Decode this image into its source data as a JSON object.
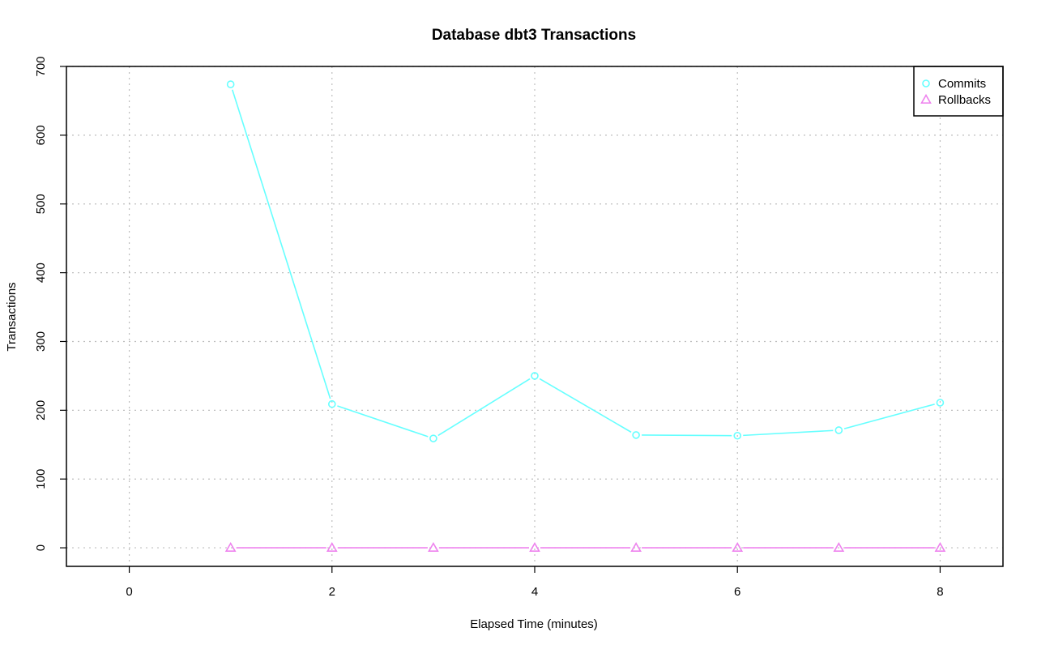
{
  "chart_data": {
    "type": "line",
    "title": "Database dbt3 Transactions",
    "xlabel": "Elapsed Time (minutes)",
    "ylabel": "Transactions",
    "xlim": [
      -0.62,
      8.62
    ],
    "ylim": [
      -27,
      700
    ],
    "x_ticks": [
      0,
      2,
      4,
      6,
      8
    ],
    "y_ticks": [
      0,
      100,
      200,
      300,
      400,
      500,
      600,
      700
    ],
    "grid": true,
    "legend_position": "top-right",
    "series": [
      {
        "name": "Commits",
        "color": "#66ffff",
        "marker": "circle",
        "x": [
          1,
          2,
          3,
          4,
          5,
          6,
          7,
          8
        ],
        "values": [
          674,
          209,
          159,
          250,
          164,
          163,
          171,
          211
        ]
      },
      {
        "name": "Rollbacks",
        "color": "#ee82ee",
        "marker": "triangle",
        "x": [
          1,
          2,
          3,
          4,
          5,
          6,
          7,
          8
        ],
        "values": [
          0,
          0,
          0,
          0,
          0,
          0,
          0,
          0
        ]
      }
    ]
  }
}
